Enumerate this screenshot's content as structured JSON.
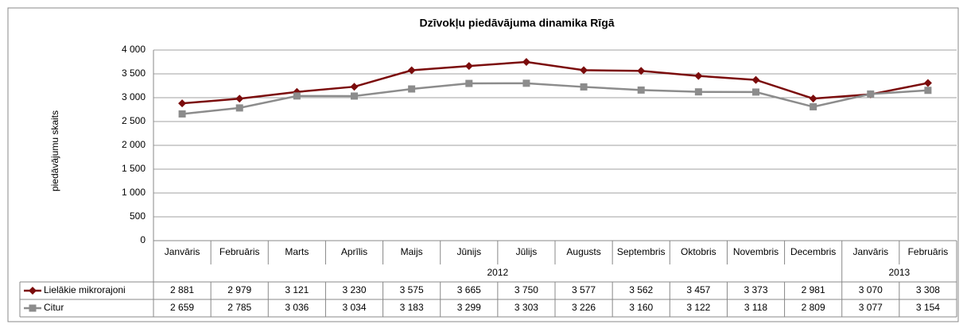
{
  "chart_data": {
    "type": "line",
    "title": "Dzīvokļu piedāvājuma dinamika Rīgā",
    "y_label": "piedāvājumu skaits",
    "categories": [
      "Janvāris",
      "Februāris",
      "Marts",
      "Aprīlis",
      "Maijs",
      "Jūnijs",
      "Jūlijs",
      "Augusts",
      "Septembris",
      "Oktobris",
      "Novembris",
      "Decembris",
      "Janvāris",
      "Februāris"
    ],
    "groups": [
      {
        "label": "2012",
        "size": 12
      },
      {
        "label": "2013",
        "size": 2
      }
    ],
    "series": [
      {
        "name": "Lielākie mikrorajoni",
        "color": "#7b0c0c",
        "marker": "diamond",
        "values": [
          2881,
          2979,
          3121,
          3230,
          3575,
          3665,
          3750,
          3577,
          3562,
          3457,
          3373,
          2981,
          3070,
          3308
        ],
        "value_labels": [
          "2 881",
          "2 979",
          "3 121",
          "3 230",
          "3 575",
          "3 665",
          "3 750",
          "3 577",
          "3 562",
          "3 457",
          "3 373",
          "2 981",
          "3 070",
          "3 308"
        ]
      },
      {
        "name": "Citur",
        "color": "#8c8c8c",
        "marker": "square",
        "values": [
          2659,
          2785,
          3036,
          3034,
          3183,
          3299,
          3303,
          3226,
          3160,
          3122,
          3118,
          2809,
          3077,
          3154
        ],
        "value_labels": [
          "2 659",
          "2 785",
          "3 036",
          "3 034",
          "3 183",
          "3 299",
          "3 303",
          "3 226",
          "3 160",
          "3 122",
          "3 118",
          "2 809",
          "3 077",
          "3 154"
        ]
      }
    ],
    "ylim": [
      0,
      4000
    ],
    "yticks": [
      0,
      500,
      {
        "value": 1000,
        "label": "1 000"
      },
      {
        "value": 1500,
        "label": "1 500"
      },
      {
        "value": 2000,
        "label": "2 000"
      },
      {
        "value": 2500,
        "label": "2 500"
      },
      {
        "value": 3000,
        "label": "3 000"
      },
      {
        "value": 3500,
        "label": "3 500"
      },
      {
        "value": 4000,
        "label": "4 000"
      }
    ],
    "grid": true
  }
}
